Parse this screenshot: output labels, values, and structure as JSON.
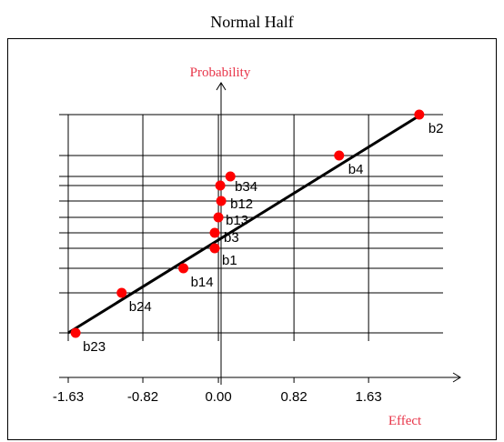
{
  "title": "Normal Half",
  "chart_data": {
    "type": "scatter",
    "title": "Normal Half",
    "xlabel": "Effect",
    "ylabel": "Probability",
    "xlim": [
      -1.63,
      2.3
    ],
    "x_ticks": [
      "-1.63",
      "-0.82",
      "0.00",
      "0.82",
      "1.63"
    ],
    "points": [
      {
        "label": "b23",
        "x": -1.55,
        "y": 0
      },
      {
        "label": "b24",
        "x": -1.05,
        "y": 1
      },
      {
        "label": "b14",
        "x": -0.38,
        "y": 2
      },
      {
        "label": "b1",
        "x": -0.04,
        "y": 3
      },
      {
        "label": "b3",
        "x": -0.04,
        "y": 4
      },
      {
        "label": "b13",
        "x": 0.0,
        "y": 5
      },
      {
        "label": "b12",
        "x": 0.03,
        "y": 6
      },
      {
        "label": "b34",
        "x": 0.02,
        "y": 7
      },
      {
        "label": "",
        "x": 0.13,
        "y": 8
      },
      {
        "label": "b4",
        "x": 1.31,
        "y": 9
      },
      {
        "label": "b2",
        "x": 2.18,
        "y": 10
      }
    ],
    "fit_line": {
      "x": [
        -1.63,
        2.2
      ],
      "y": [
        0,
        10
      ]
    },
    "grid": true,
    "colors": {
      "points": "#ff0000",
      "fit_line": "#000000",
      "axis_title": "#e8364a"
    }
  }
}
